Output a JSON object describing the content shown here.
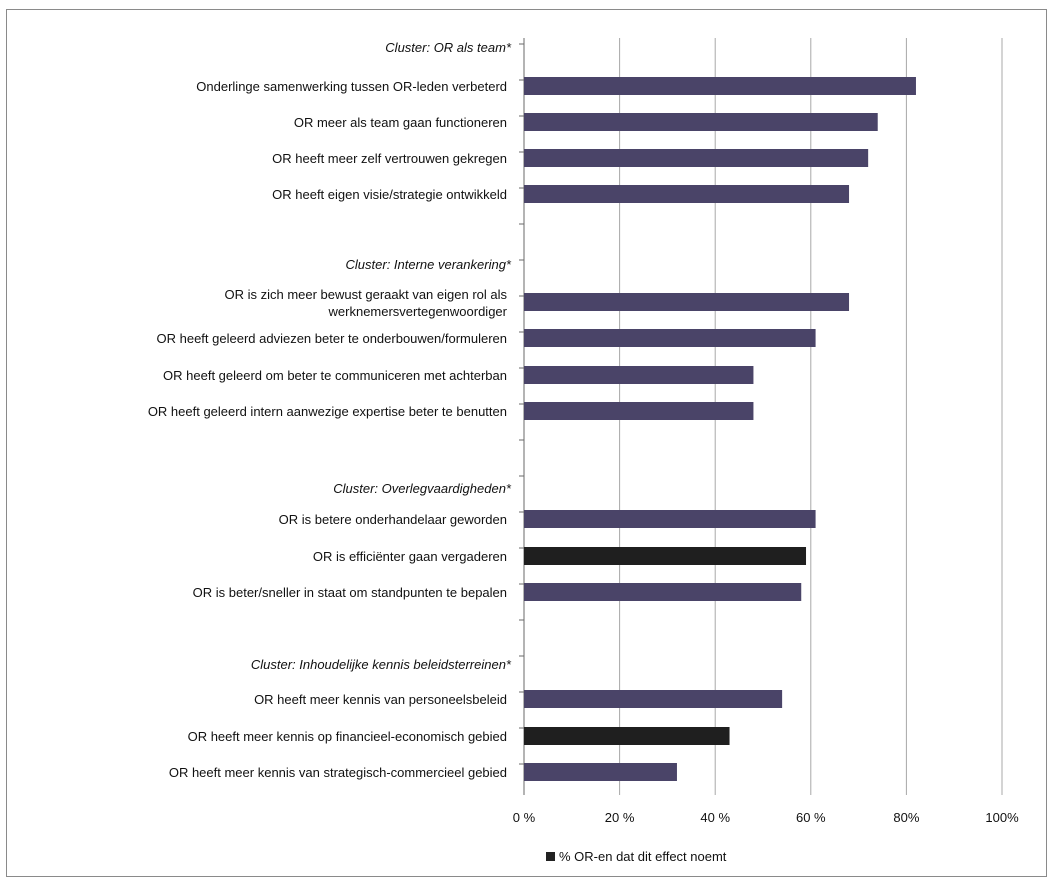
{
  "chart_data": {
    "type": "bar",
    "orientation": "horizontal",
    "xlim": [
      0,
      100
    ],
    "grid": true,
    "legend_position": "bottom-center",
    "x_ticks": [
      "0 %",
      "20 %",
      "40 %",
      "60 %",
      "80%",
      "100%"
    ],
    "colors": {
      "default": "#4a4468",
      "highlight": "#1f1f1f",
      "grid": "#a8a8a8"
    },
    "legend": [
      {
        "name": "% OR-en dat dit effect noemt",
        "color": "#222222"
      }
    ],
    "clusters": [
      {
        "label": "Cluster: OR als team*",
        "items": [
          {
            "label": "Onderlinge samenwerking tussen OR-leden verbeterd",
            "value": 82
          },
          {
            "label": "OR meer als team gaan functioneren",
            "value": 74
          },
          {
            "label": "OR heeft meer zelf vertrouwen gekregen",
            "value": 72
          },
          {
            "label": "OR heeft eigen visie/strategie ontwikkeld",
            "value": 68
          }
        ]
      },
      {
        "label": "Cluster: Interne verankering*",
        "items": [
          {
            "label": "OR is zich meer bewust geraakt van eigen rol als werknemersvertegenwoordiger",
            "lines": [
              "OR is zich meer bewust geraakt van eigen rol als",
              "werknemersvertegenwoordiger"
            ],
            "value": 68
          },
          {
            "label": "OR heeft geleerd adviezen beter te onderbouwen/formuleren",
            "value": 61
          },
          {
            "label": "OR heeft geleerd om beter te communiceren met achterban",
            "value": 48
          },
          {
            "label": "OR heeft geleerd intern aanwezige expertise beter te benutten",
            "value": 48
          }
        ]
      },
      {
        "label": "Cluster: Overlegvaardigheden*",
        "items": [
          {
            "label": "OR is betere onderhandelaar geworden",
            "value": 61
          },
          {
            "label": "OR is efficiënter gaan vergaderen",
            "value": 59,
            "highlight": true
          },
          {
            "label": "OR is beter/sneller in staat om standpunten te bepalen",
            "value": 58
          }
        ]
      },
      {
        "label": "Cluster: Inhoudelijke kennis beleidsterreinen*",
        "items": [
          {
            "label": "OR heeft meer kennis van personeelsbeleid",
            "value": 54
          },
          {
            "label": "OR heeft meer kennis op financieel-economisch gebied",
            "value": 43,
            "highlight": true
          },
          {
            "label": "OR heeft meer kennis van strategisch-commercieel gebied",
            "value": 32
          }
        ]
      }
    ]
  }
}
